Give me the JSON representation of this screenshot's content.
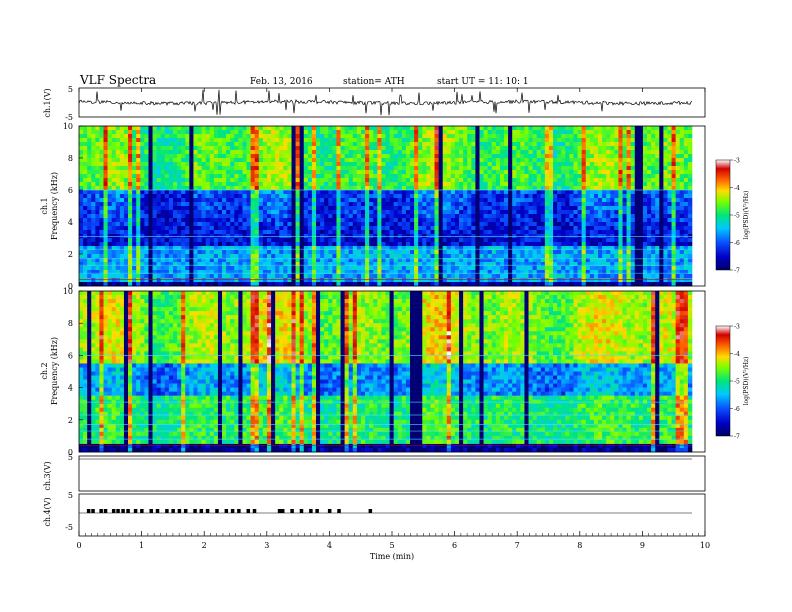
{
  "header": {
    "title": "VLF  Spectra",
    "date": "Feb. 13, 2016",
    "station": "station= ATH",
    "start": "start  UT  =     11: 10: 1"
  },
  "chart_data": [
    {
      "type": "line",
      "panel": "ch1-waveform",
      "ylabel": "ch.1(V)",
      "ylim": [
        -5,
        5
      ],
      "yticks": [
        "5",
        "-5"
      ],
      "description_values": "noisy baseline near 0 V with spikes"
    },
    {
      "type": "heatmap",
      "panel": "ch1-spectrogram",
      "ylabel_channel": "ch.1",
      "ylabel": "Frequency  (kHz)",
      "ylim": [
        0,
        10
      ],
      "yticks": [
        "0",
        "2",
        "4",
        "6",
        "8",
        "10"
      ],
      "colorbar": {
        "label": "log(PSD)(V²/Hz)",
        "range": [
          -7,
          -3
        ],
        "ticks": [
          "-3",
          "-4",
          "-5",
          "-6",
          "-7"
        ]
      },
      "colormap": [
        "#000060",
        "#0000c8",
        "#0a50ff",
        "#00c8ff",
        "#00e678",
        "#78ff00",
        "#ffdc00",
        "#ff6400",
        "#d20000",
        "#ffffff"
      ]
    },
    {
      "type": "heatmap",
      "panel": "ch2-spectrogram",
      "ylabel_channel": "ch.2",
      "ylabel": "Frequency  (kHz)",
      "ylim": [
        0,
        10
      ],
      "yticks": [
        "0",
        "2",
        "4",
        "6",
        "8",
        "10"
      ],
      "colorbar": {
        "label": "log(PSD)(V²/Hz)",
        "range": [
          -7,
          -3
        ],
        "ticks": [
          "-3",
          "-4",
          "-5",
          "-6",
          "-7"
        ]
      }
    },
    {
      "type": "line",
      "panel": "ch3-waveform",
      "ylabel": "ch.3(V)",
      "ylim": [
        -5,
        5
      ],
      "yticks": [
        "5",
        "-5"
      ]
    },
    {
      "type": "line",
      "panel": "ch4-waveform",
      "ylabel": "ch.4(V)",
      "ylim": [
        -5,
        5
      ],
      "yticks": [
        "5",
        "-5"
      ],
      "pulse_times_min": [
        0.15,
        0.22,
        0.35,
        0.42,
        0.55,
        0.62,
        0.7,
        0.78,
        0.9,
        1.0,
        1.15,
        1.25,
        1.4,
        1.5,
        1.6,
        1.7,
        1.85,
        1.95,
        2.05,
        2.2,
        2.35,
        2.45,
        2.55,
        2.7,
        2.8,
        3.2,
        3.25,
        3.4,
        3.55,
        3.7,
        3.8,
        4.0,
        4.15,
        4.65
      ]
    }
  ],
  "xaxis": {
    "label": "Time  (min)",
    "range": [
      0,
      10
    ],
    "ticks": [
      "0",
      "1",
      "2",
      "3",
      "4",
      "5",
      "6",
      "7",
      "8",
      "9",
      "10"
    ]
  }
}
